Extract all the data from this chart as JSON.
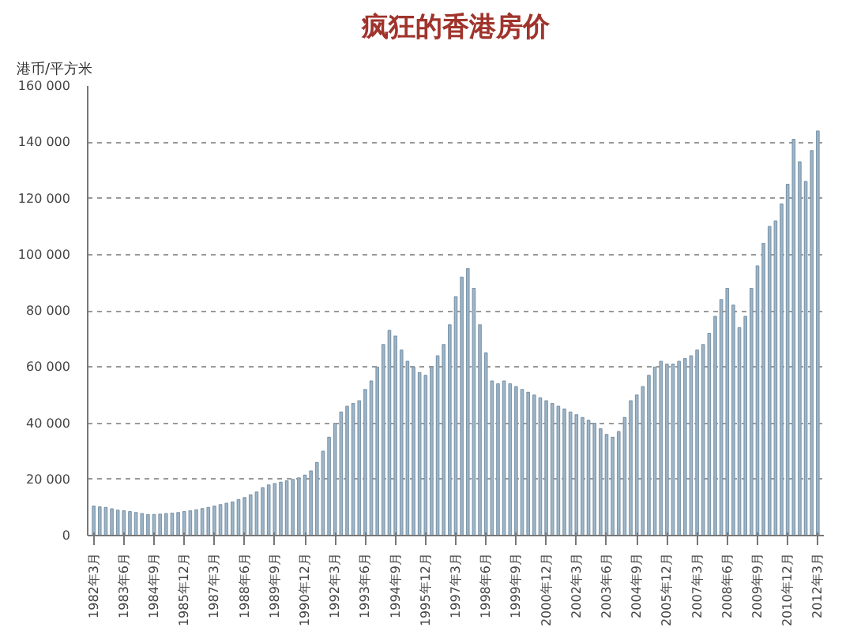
{
  "chart_data": {
    "type": "bar",
    "title": "疯狂的香港房价",
    "ylabel": "港币/平方米",
    "categories": [
      "1982年3月",
      null,
      null,
      null,
      null,
      "1983年6月",
      null,
      null,
      null,
      null,
      "1984年9月",
      null,
      null,
      null,
      null,
      "1985年12月",
      null,
      null,
      null,
      null,
      "1987年3月",
      null,
      null,
      null,
      null,
      "1988年6月",
      null,
      null,
      null,
      null,
      "1989年9月",
      null,
      null,
      null,
      null,
      "1990年12月",
      null,
      null,
      null,
      null,
      "1992年3月",
      null,
      null,
      null,
      null,
      "1993年6月",
      null,
      null,
      null,
      null,
      "1994年9月",
      null,
      null,
      null,
      null,
      "1995年12月",
      null,
      null,
      null,
      null,
      "1997年3月",
      null,
      null,
      null,
      null,
      "1998年6月",
      null,
      null,
      null,
      null,
      "1999年9月",
      null,
      null,
      null,
      null,
      "2000年12月",
      null,
      null,
      null,
      null,
      "2002年3月",
      null,
      null,
      null,
      null,
      "2003年6月",
      null,
      null,
      null,
      null,
      "2004年9月",
      null,
      null,
      null,
      null,
      "2005年12月",
      null,
      null,
      null,
      null,
      "2007年3月",
      null,
      null,
      null,
      null,
      "2008年6月",
      null,
      null,
      null,
      null,
      "2009年9月",
      null,
      null,
      null,
      null,
      "2010年12月",
      null,
      null,
      null,
      null,
      "2012年3月"
    ],
    "values": [
      10500,
      10200,
      10000,
      9500,
      9000,
      8800,
      8500,
      8200,
      7800,
      7500,
      7500,
      7600,
      7800,
      8000,
      8200,
      8500,
      8800,
      9200,
      9600,
      10000,
      10500,
      11000,
      11500,
      12000,
      12800,
      13500,
      14500,
      15500,
      17000,
      18000,
      18500,
      19000,
      19500,
      20000,
      20500,
      21500,
      23000,
      26000,
      30000,
      35000,
      40000,
      44000,
      46000,
      47000,
      48000,
      52000,
      55000,
      60000,
      68000,
      73000,
      71000,
      66000,
      62000,
      60000,
      58000,
      57000,
      60000,
      64000,
      68000,
      75000,
      85000,
      92000,
      95000,
      88000,
      75000,
      65000,
      55000,
      54000,
      55000,
      54000,
      53000,
      52000,
      51000,
      50000,
      49000,
      48000,
      47000,
      46000,
      45000,
      44000,
      43000,
      42000,
      41000,
      40000,
      38000,
      36000,
      35000,
      37000,
      42000,
      48000,
      50000,
      53000,
      57000,
      60000,
      62000,
      61000,
      61000,
      62000,
      63000,
      64000,
      66000,
      68000,
      72000,
      78000,
      84000,
      88000,
      82000,
      74000,
      78000,
      88000,
      96000,
      104000,
      110000,
      112000,
      118000,
      125000,
      141000,
      133000,
      126000,
      137000,
      144000
    ],
    "color": "#9fb6c8",
    "ylim": [
      0,
      160000
    ],
    "yticks": [
      0,
      {
        "value": 20000,
        "label": "20 000"
      },
      {
        "value": 40000,
        "label": "40 000"
      },
      {
        "value": 60000,
        "label": "60 000"
      },
      {
        "value": 80000,
        "label": "80 000"
      },
      {
        "value": 100000,
        "label": "100 000"
      },
      {
        "value": 120000,
        "label": "120 000"
      },
      {
        "value": 140000,
        "label": "140 000"
      },
      {
        "value": 160000,
        "label": "160 000"
      }
    ],
    "grid": "y"
  }
}
